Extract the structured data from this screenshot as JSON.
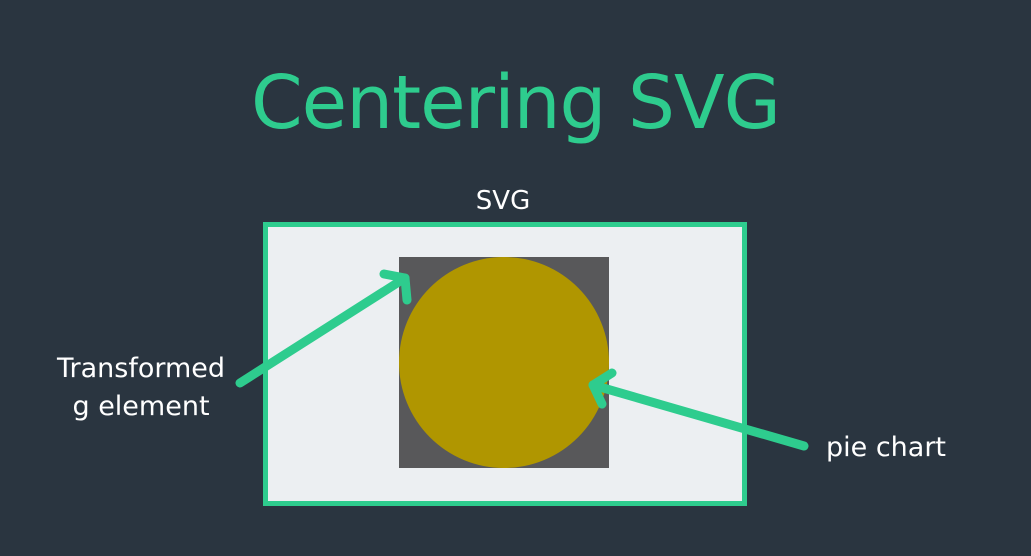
{
  "title": "Centering SVG",
  "labels": {
    "svg": "SVG",
    "transformed_line1": "Transformed",
    "transformed_line2": "g element",
    "pie_chart": "pie chart"
  },
  "colors": {
    "background": "#2a3540",
    "accent": "#2ecc8e",
    "text": "#ffffff",
    "svg_fill": "#eceff2",
    "g_element_fill": "#58585a",
    "pie_fill": "#b09600"
  }
}
